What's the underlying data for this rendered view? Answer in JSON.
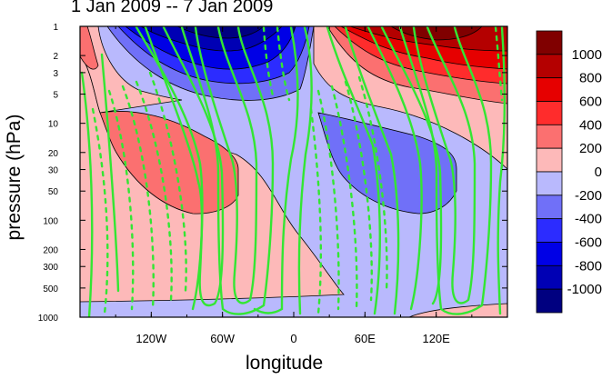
{
  "chart_data": {
    "type": "heatmap",
    "title": "1 Jan 2009 -- 7 Jan 2009",
    "xlabel": "longitude",
    "ylabel": "pressure (hPa)",
    "x_ticks": [
      {
        "lon": -120,
        "label": "120W"
      },
      {
        "lon": -60,
        "label": "60W"
      },
      {
        "lon": 0,
        "label": "0"
      },
      {
        "lon": 60,
        "label": "60E"
      },
      {
        "lon": 120,
        "label": "120E"
      }
    ],
    "xlim": [
      -180,
      180
    ],
    "y_scale": "log",
    "y_reversed": true,
    "ylim": [
      1000,
      1
    ],
    "y_ticks": [
      {
        "p": 1,
        "label": "1"
      },
      {
        "p": 2,
        "label": "2"
      },
      {
        "p": 3,
        "label": "3"
      },
      {
        "p": 5,
        "label": "5"
      },
      {
        "p": 10,
        "label": "10"
      },
      {
        "p": 20,
        "label": "20"
      },
      {
        "p": 30,
        "label": "30"
      },
      {
        "p": 50,
        "label": "50"
      },
      {
        "p": 100,
        "label": "100"
      },
      {
        "p": 200,
        "label": "200"
      },
      {
        "p": 300,
        "label": "300"
      },
      {
        "p": 500,
        "label": "500"
      },
      {
        "p": 1000,
        "label": "1000"
      }
    ],
    "colorbar": {
      "levels": [
        {
          "label": "1000",
          "color": "#800000"
        },
        {
          "label": "800",
          "color": "#b40000"
        },
        {
          "label": "600",
          "color": "#e60000"
        },
        {
          "label": "400",
          "color": "#ff2c2c"
        },
        {
          "label": "200",
          "color": "#fb7070"
        },
        {
          "label": "0",
          "color": "#fdb9b9"
        },
        {
          "label": "-200",
          "color": "#b9b9fd"
        },
        {
          "label": "-400",
          "color": "#7070f8"
        },
        {
          "label": "-600",
          "color": "#2c2cff"
        },
        {
          "label": "-800",
          "color": "#0000e6"
        },
        {
          "label": "-1000",
          "color": "#0000b4"
        }
      ],
      "bottom_color": "#000080"
    },
    "overlay_contour_color": "#33e633",
    "overlay_negative_dashed": true
  }
}
